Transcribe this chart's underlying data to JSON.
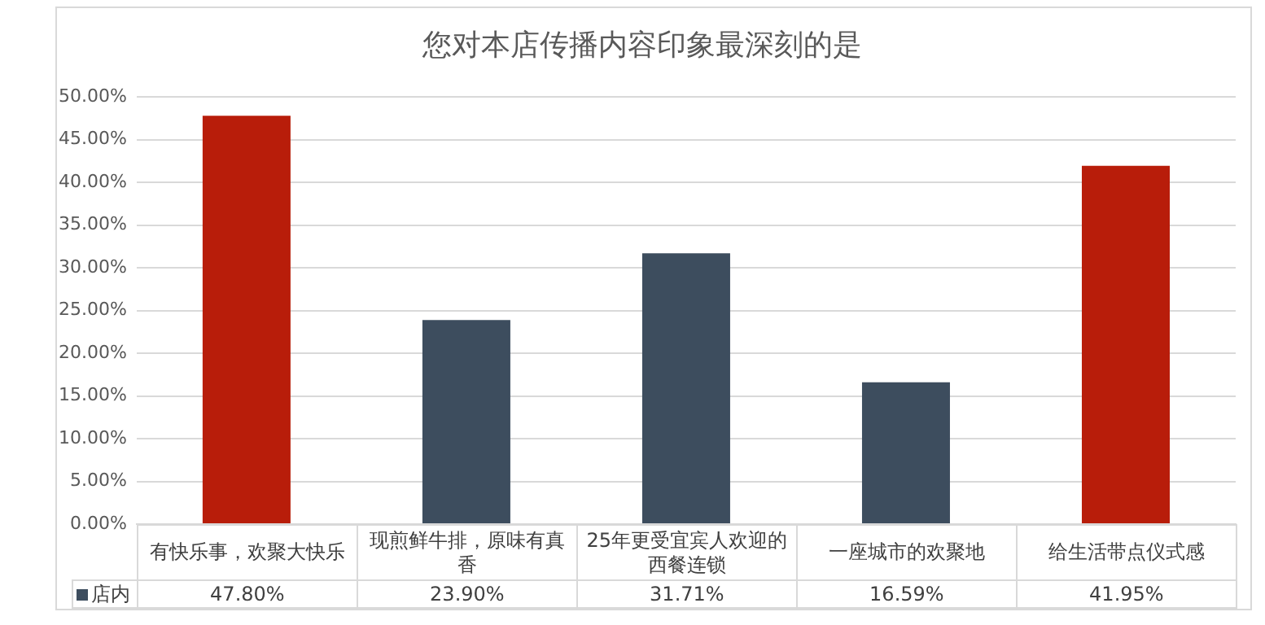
{
  "chart_data": {
    "type": "bar",
    "title": "您对本店传播内容印象最深刻的是",
    "categories": [
      "有快乐事，欢聚大快乐",
      "现煎鲜牛排，原味有真香",
      "25年更受宜宾人欢迎的西餐连锁",
      "一座城市的欢聚地",
      "给生活带点仪式感"
    ],
    "series": [
      {
        "name": "店内",
        "color": "#3d4d5e",
        "colors": [
          "#b81d0a",
          "#3d4d5e",
          "#3d4d5e",
          "#3d4d5e",
          "#b81d0a"
        ],
        "values": [
          47.8,
          23.9,
          31.71,
          16.59,
          41.95
        ],
        "value_labels": [
          "47.80%",
          "23.90%",
          "31.71%",
          "16.59%",
          "41.95%"
        ]
      }
    ],
    "ylim": [
      0,
      50
    ],
    "yticks": [
      {
        "value": 0,
        "label": "0.00%"
      },
      {
        "value": 5,
        "label": "5.00%"
      },
      {
        "value": 10,
        "label": "10.00%"
      },
      {
        "value": 15,
        "label": "15.00%"
      },
      {
        "value": 20,
        "label": "20.00%"
      },
      {
        "value": 25,
        "label": "25.00%"
      },
      {
        "value": 30,
        "label": "30.00%"
      },
      {
        "value": 35,
        "label": "35.00%"
      },
      {
        "value": 40,
        "label": "40.00%"
      },
      {
        "value": 45,
        "label": "45.00%"
      },
      {
        "value": 50,
        "label": "50.00%"
      }
    ],
    "grid": "y",
    "legend": "bottom"
  }
}
